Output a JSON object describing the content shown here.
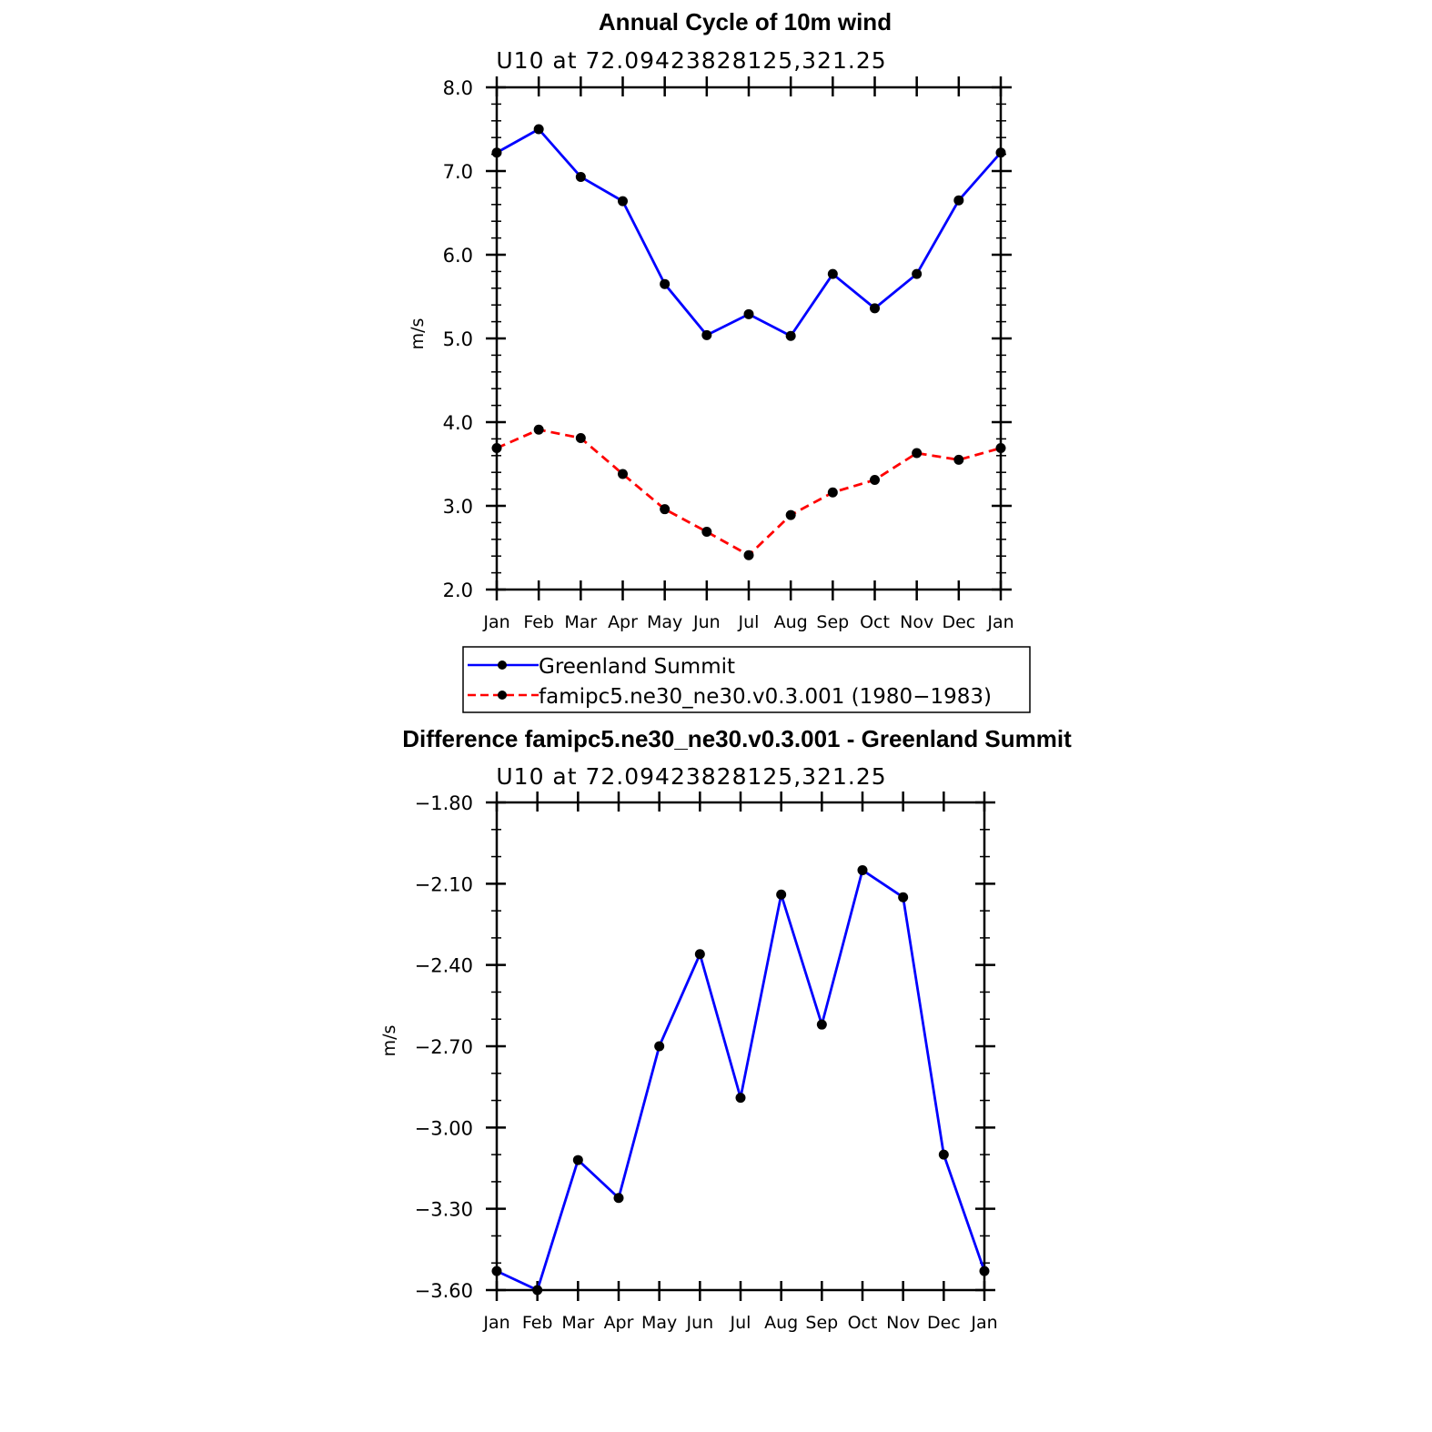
{
  "chart_data": [
    {
      "type": "line",
      "title": "Annual Cycle of 10m wind",
      "subtitle": "U10 at 72.09423828125,321.25",
      "xlabel": "",
      "ylabel": "m/s",
      "categories": [
        "Jan",
        "Feb",
        "Mar",
        "Apr",
        "May",
        "Jun",
        "Jul",
        "Aug",
        "Sep",
        "Oct",
        "Nov",
        "Dec",
        "Jan"
      ],
      "ylim": [
        2.0,
        8.0
      ],
      "yticks": [
        2.0,
        3.0,
        4.0,
        5.0,
        6.0,
        7.0,
        8.0
      ],
      "ytick_labels": [
        "2.0",
        "3.0",
        "4.0",
        "5.0",
        "6.0",
        "7.0",
        "8.0"
      ],
      "series": [
        {
          "name": "Greenland Summit",
          "color": "#0000ff",
          "dash": "solid",
          "values": [
            7.22,
            7.5,
            6.93,
            6.64,
            5.65,
            5.04,
            5.29,
            5.03,
            5.77,
            5.36,
            5.77,
            6.65,
            7.22
          ]
        },
        {
          "name": "famipc5.ne30_ne30.v0.3.001 (1980−1983)",
          "color": "#ff0000",
          "dash": "dashed",
          "values": [
            3.69,
            3.91,
            3.81,
            3.38,
            2.96,
            2.69,
            2.41,
            2.89,
            3.16,
            3.31,
            3.63,
            3.55,
            3.69
          ]
        }
      ],
      "legend": {
        "position": "below",
        "entries": [
          "Greenland Summit",
          "famipc5.ne30_ne30.v0.3.001 (1980−1983)"
        ]
      }
    },
    {
      "type": "line",
      "title": "Difference famipc5.ne30_ne30.v0.3.001 - Greenland Summit",
      "subtitle": "U10 at 72.09423828125,321.25",
      "xlabel": "",
      "ylabel": "m/s",
      "categories": [
        "Jan",
        "Feb",
        "Mar",
        "Apr",
        "May",
        "Jun",
        "Jul",
        "Aug",
        "Sep",
        "Oct",
        "Nov",
        "Dec",
        "Jan"
      ],
      "ylim": [
        -3.6,
        -1.8
      ],
      "yticks": [
        -3.6,
        -3.3,
        -3.0,
        -2.7,
        -2.4,
        -2.1,
        -1.8
      ],
      "ytick_labels": [
        "−3.60",
        "−3.30",
        "−3.00",
        "−2.70",
        "−2.40",
        "−2.10",
        "−1.80"
      ],
      "series": [
        {
          "name": "Difference",
          "color": "#0000ff",
          "dash": "solid",
          "values": [
            -3.53,
            -3.6,
            -3.12,
            -3.26,
            -2.7,
            -2.36,
            -2.89,
            -2.14,
            -2.62,
            -2.05,
            -2.15,
            -3.1,
            -3.53
          ]
        }
      ]
    }
  ]
}
